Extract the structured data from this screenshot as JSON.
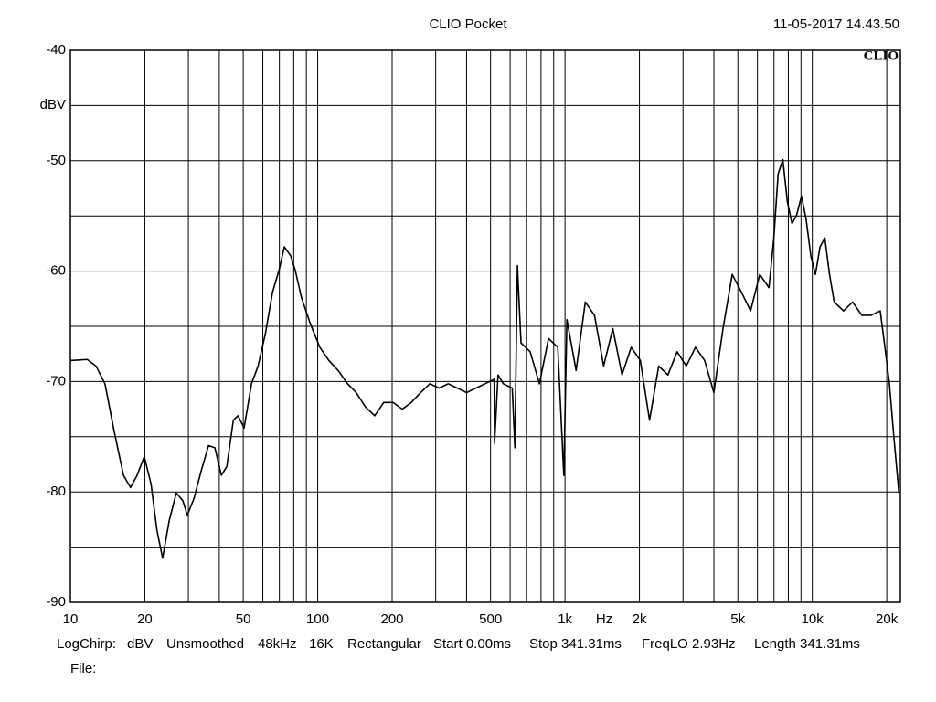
{
  "chart_data": {
    "type": "line",
    "title": "CLIO Pocket",
    "timestamp": "11-05-2017 14.43.50",
    "logo": "CLIO",
    "x_label": "Hz",
    "y_label": "dBV",
    "log_x": true,
    "grid": true,
    "xlim": [
      10,
      22700
    ],
    "ylim": [
      -90,
      -40
    ],
    "xticks": [
      10,
      20,
      50,
      100,
      200,
      500,
      {
        "value": 1000,
        "label": "1k"
      },
      {
        "value": 2000,
        "label": "2k"
      },
      {
        "value": 5000,
        "label": "5k"
      },
      {
        "value": 10000,
        "label": "10k"
      },
      {
        "value": 20000,
        "label": "20k"
      }
    ],
    "xgrid_minor": [
      30,
      40,
      60,
      70,
      80,
      90,
      300,
      400,
      600,
      700,
      800,
      900,
      3000,
      4000,
      6000,
      7000,
      8000,
      9000
    ],
    "yticks": [
      -40,
      -50,
      -60,
      -70,
      -80,
      -90
    ],
    "ygrid_minor": [
      -45,
      -55,
      -65,
      -75,
      -85
    ],
    "x": [
      10,
      11.7,
      12.7,
      13.8,
      15,
      16.4,
      17.5,
      18.6,
      19.9,
      21.2,
      22.4,
      23.6,
      25.1,
      26.8,
      28.5,
      29.7,
      31.6,
      33.8,
      36.2,
      38.4,
      40.8,
      42.9,
      45.6,
      47.6,
      50.4,
      54,
      57.4,
      61.4,
      65.7,
      69.8,
      73.3,
      77.7,
      81.1,
      86,
      93.5,
      102,
      111,
      121,
      132,
      143,
      156,
      170,
      185,
      202,
      220,
      239,
      261,
      284,
      310,
      337,
      367,
      400,
      436,
      475,
      517,
      519,
      536,
      563,
      612,
      627,
      642,
      664,
      723,
      788,
      858,
      935,
      989,
      1018,
      1109,
      1208,
      1316,
      1433,
      1561,
      1700,
      1852,
      2017,
      2197,
      2393,
      2607,
      2840,
      3093,
      3369,
      3670,
      3998,
      4355,
      4744,
      5167,
      5629,
      6131,
      6679,
      6990,
      7274,
      7602,
      7925,
      8280,
      8650,
      9040,
      9440,
      9860,
      10290,
      10750,
      11240,
      11740,
      12260,
      13370,
      14560,
      15860,
      17280,
      18820,
      19660,
      20500,
      21400,
      22400
    ],
    "series": [
      {
        "color": "#000000",
        "values": [
          -68.1,
          -68.0,
          -68.6,
          -70.2,
          -74.4,
          -78.5,
          -79.6,
          -78.5,
          -76.8,
          -79.3,
          -83.5,
          -86.0,
          -82.6,
          -80.1,
          -80.8,
          -82.1,
          -80.6,
          -78.1,
          -75.8,
          -76.0,
          -78.5,
          -77.7,
          -73.5,
          -73.1,
          -74.2,
          -70.2,
          -68.6,
          -65.7,
          -61.9,
          -59.9,
          -57.8,
          -58.6,
          -59.9,
          -62.4,
          -64.8,
          -66.9,
          -68.1,
          -69.0,
          -70.2,
          -71.0,
          -72.3,
          -73.1,
          -71.9,
          -71.9,
          -72.5,
          -71.9,
          -71.0,
          -70.2,
          -70.6,
          -70.2,
          -70.6,
          -71.0,
          -70.6,
          -70.2,
          -69.8,
          -75.6,
          -69.4,
          -70.2,
          -70.6,
          -76.0,
          -59.5,
          -66.5,
          -67.3,
          -70.2,
          -66.1,
          -66.9,
          -78.5,
          -64.4,
          -69.0,
          -62.8,
          -64.0,
          -68.6,
          -65.2,
          -69.4,
          -66.9,
          -68.1,
          -73.5,
          -68.6,
          -69.4,
          -67.3,
          -68.6,
          -66.9,
          -68.1,
          -71.0,
          -65.2,
          -60.3,
          -61.9,
          -63.6,
          -60.3,
          -61.5,
          -57.0,
          -51.2,
          -49.9,
          -53.7,
          -55.7,
          -54.9,
          -53.2,
          -55.3,
          -58.6,
          -60.3,
          -57.8,
          -57.0,
          -60.3,
          -62.8,
          -63.6,
          -62.8,
          -64.0,
          -64.0,
          -63.6,
          -66.9,
          -70.2,
          -75.2,
          -80.1
        ]
      }
    ],
    "footer": [
      "LogChirp:",
      "dBV",
      "Unsmoothed",
      "48kHz",
      "16K",
      "Rectangular",
      "Start 0.00ms",
      "Stop 341.31ms",
      "FreqLO 2.93Hz",
      "Length 341.31ms"
    ],
    "file_label": "File:"
  }
}
